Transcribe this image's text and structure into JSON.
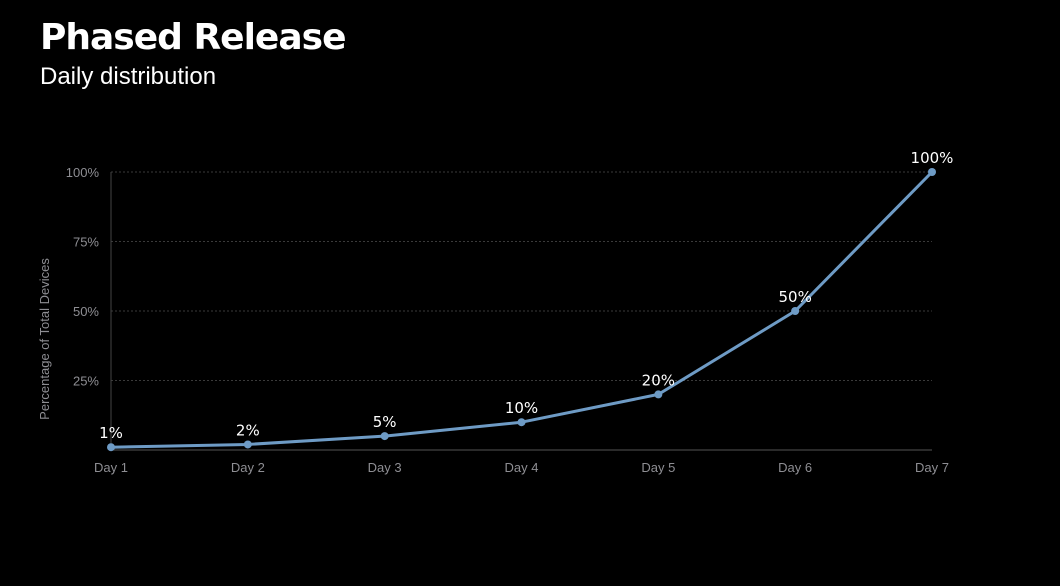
{
  "header": {
    "title": "Phased Release",
    "subtitle": "Daily distribution"
  },
  "colors": {
    "background": "#000000",
    "line": "#6e9bc5",
    "grid": "#3a3a3a",
    "axis_text": "#8e8e93",
    "text": "#ffffff"
  },
  "chart_data": {
    "type": "line",
    "title": "",
    "xlabel": "",
    "ylabel": "Percentage of Total Devices",
    "categories": [
      "Day 1",
      "Day 2",
      "Day 3",
      "Day 4",
      "Day 5",
      "Day 6",
      "Day 7"
    ],
    "series": [
      {
        "values": [
          1,
          2,
          5,
          10,
          20,
          50,
          100
        ],
        "labels": [
          "1%",
          "2%",
          "5%",
          "10%",
          "20%",
          "50%",
          "100%"
        ]
      }
    ],
    "ylim": [
      0,
      100
    ],
    "yticks": [
      25,
      50,
      75,
      100
    ],
    "ytick_labels": [
      "25%",
      "50%",
      "75%",
      "100%"
    ],
    "grid": "horizontal dotted",
    "legend": "none"
  }
}
